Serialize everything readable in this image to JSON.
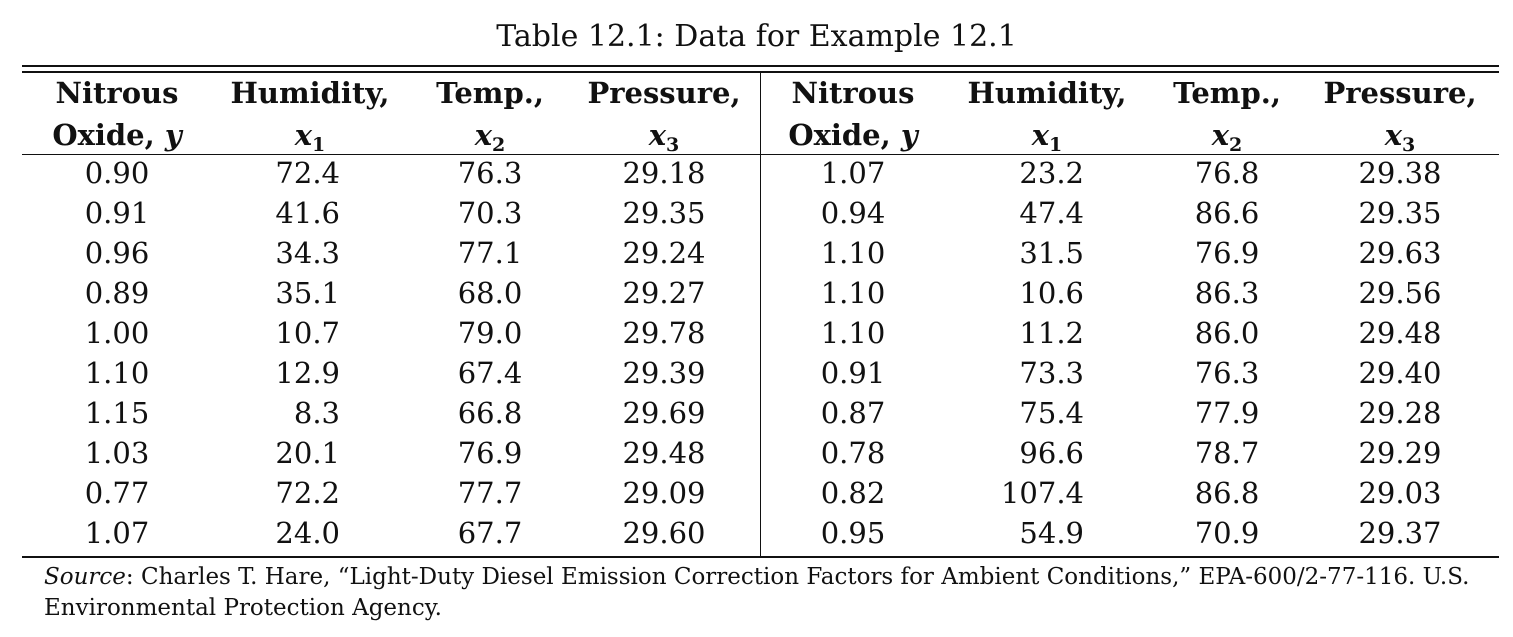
{
  "caption": "Table 12.1: Data for Example 12.1",
  "headers": [
    {
      "line1": "Nitrous",
      "line2_text": "Oxide, ",
      "line2_var": "y",
      "line2_sub": ""
    },
    {
      "line1": "Humidity,",
      "line2_text": "",
      "line2_var": "x",
      "line2_sub": "1"
    },
    {
      "line1": "Temp.,",
      "line2_text": "",
      "line2_var": "x",
      "line2_sub": "2"
    },
    {
      "line1": "Pressure,",
      "line2_text": "",
      "line2_var": "x",
      "line2_sub": "3"
    },
    {
      "line1": "Nitrous",
      "line2_text": "Oxide, ",
      "line2_var": "y",
      "line2_sub": ""
    },
    {
      "line1": "Humidity,",
      "line2_text": "",
      "line2_var": "x",
      "line2_sub": "1"
    },
    {
      "line1": "Temp.,",
      "line2_text": "",
      "line2_var": "x",
      "line2_sub": "2"
    },
    {
      "line1": "Pressure,",
      "line2_text": "",
      "line2_var": "x",
      "line2_sub": "3"
    }
  ],
  "rows": [
    [
      "0.90",
      "72.4",
      "76.3",
      "29.18",
      "1.07",
      "23.2",
      "76.8",
      "29.38"
    ],
    [
      "0.91",
      "41.6",
      "70.3",
      "29.35",
      "0.94",
      "47.4",
      "86.6",
      "29.35"
    ],
    [
      "0.96",
      "34.3",
      "77.1",
      "29.24",
      "1.10",
      "31.5",
      "76.9",
      "29.63"
    ],
    [
      "0.89",
      "35.1",
      "68.0",
      "29.27",
      "1.10",
      "10.6",
      "86.3",
      "29.56"
    ],
    [
      "1.00",
      "10.7",
      "79.0",
      "29.78",
      "1.10",
      "11.2",
      "86.0",
      "29.48"
    ],
    [
      "1.10",
      "12.9",
      "67.4",
      "29.39",
      "0.91",
      "73.3",
      "76.3",
      "29.40"
    ],
    [
      "1.15",
      "8.3",
      "66.8",
      "29.69",
      "0.87",
      "75.4",
      "77.9",
      "29.28"
    ],
    [
      "1.03",
      "20.1",
      "76.9",
      "29.48",
      "0.78",
      "96.6",
      "78.7",
      "29.29"
    ],
    [
      "0.77",
      "72.2",
      "77.7",
      "29.09",
      "0.82",
      "107.4",
      "86.8",
      "29.03"
    ],
    [
      "1.07",
      "24.0",
      "67.7",
      "29.60",
      "0.95",
      "54.9",
      "70.9",
      "29.37"
    ]
  ],
  "source": {
    "label": "Source",
    "text": ": Charles T. Hare, “Light-Duty Diesel Emission Correction Factors for Ambient Conditions,” EPA-600/2-77-116. U.S. Environmental Protection Agency."
  }
}
